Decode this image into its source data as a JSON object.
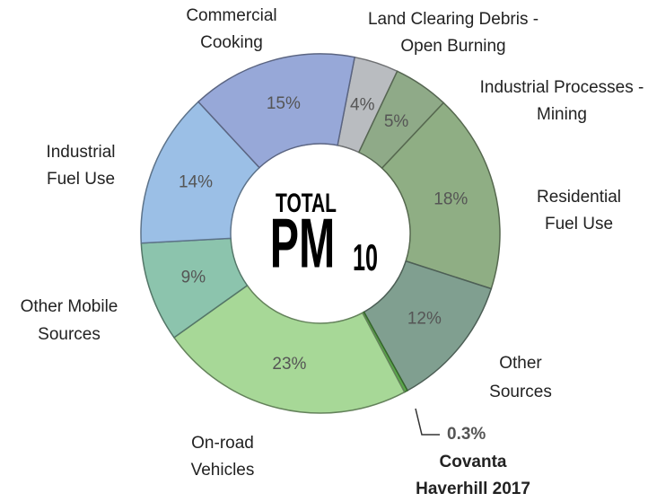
{
  "chart_data": {
    "type": "donut",
    "categories": [
      [
        "Land Clearing Debris -",
        "Open Burning"
      ],
      [
        "Industrial Processes -",
        "Mining"
      ],
      [
        "Residential",
        "Fuel Use"
      ],
      [
        "Other",
        "Sources"
      ],
      [
        "Covanta",
        "Haverhill 2017"
      ],
      [
        "On-road",
        "Vehicles"
      ],
      [
        "Other Mobile",
        "Sources"
      ],
      [
        "Industrial",
        "Fuel Use"
      ],
      [
        "Commercial",
        "Cooking"
      ]
    ],
    "values": [
      4,
      5,
      18,
      12,
      0.3,
      23,
      9,
      14,
      15
    ],
    "value_labels": [
      "4%",
      "5%",
      "18%",
      "12%",
      "0.3%",
      "23%",
      "9%",
      "14%",
      "15%"
    ],
    "colors": [
      "#b9bcc0",
      "#8faa88",
      "#8fae84",
      "#809f90",
      "#5aa84a",
      "#a7d897",
      "#8cc4ad",
      "#9bbfe6",
      "#97a8d8"
    ],
    "center_text": {
      "top": "TOTAL",
      "main": "PM",
      "sub": "10"
    }
  }
}
